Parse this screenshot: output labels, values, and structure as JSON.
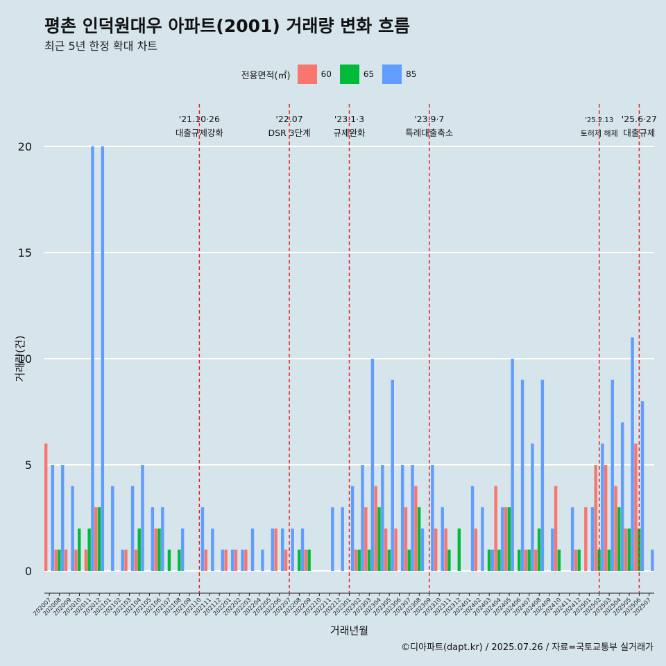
{
  "title": "평촌 인덕원대우 아파트(2001) 거래량 변화 흐름",
  "subtitle": "최근 5년 한정 확대 차트",
  "caption": "©디아파트(dapt.kr) / 2025.07.26 / 자료=국토교통부 실거래가",
  "legend": {
    "title": "전용면적(㎡)",
    "items": [
      {
        "label": "60",
        "color": "#f8766d"
      },
      {
        "label": "65",
        "color": "#00ba38"
      },
      {
        "label": "85",
        "color": "#619cff"
      }
    ]
  },
  "chart_data": {
    "type": "bar",
    "xlabel": "거래년월",
    "ylabel": "거래량(건)",
    "ylim": [
      0,
      20
    ],
    "yticks": [
      0,
      5,
      10,
      15,
      20
    ],
    "grid": true,
    "legend_position": "top",
    "categories": [
      "202007",
      "202008",
      "202009",
      "202010",
      "202011",
      "202012",
      "202101",
      "202102",
      "202103",
      "202104",
      "202105",
      "202106",
      "202107",
      "202108",
      "202109",
      "202110",
      "202111",
      "202112",
      "202201",
      "202202",
      "202203",
      "202204",
      "202205",
      "202206",
      "202207",
      "202208",
      "202209",
      "202210",
      "202211",
      "202212",
      "202301",
      "202302",
      "202303",
      "202304",
      "202305",
      "202306",
      "202307",
      "202308",
      "202309",
      "202310",
      "202311",
      "202312",
      "202401",
      "202402",
      "202403",
      "202404",
      "202405",
      "202406",
      "202407",
      "202408",
      "202409",
      "202410",
      "202411",
      "202412",
      "202501",
      "202502",
      "202503",
      "202504",
      "202505",
      "202506",
      "202507"
    ],
    "series": [
      {
        "name": "60",
        "color": "#f8766d",
        "values": [
          6,
          1,
          1,
          1,
          1,
          3,
          0,
          0,
          1,
          1,
          0,
          2,
          0,
          0,
          0,
          0,
          1,
          0,
          1,
          1,
          1,
          0,
          0,
          2,
          1,
          0,
          1,
          0,
          0,
          0,
          0,
          1,
          3,
          4,
          2,
          2,
          3,
          4,
          0,
          2,
          2,
          0,
          0,
          2,
          0,
          4,
          3,
          0,
          1,
          1,
          0,
          4,
          0,
          1,
          3,
          5,
          5,
          4,
          2,
          6,
          0
        ]
      },
      {
        "name": "65",
        "color": "#00ba38",
        "values": [
          0,
          1,
          0,
          2,
          2,
          3,
          0,
          0,
          0,
          2,
          0,
          2,
          1,
          1,
          0,
          0,
          0,
          0,
          0,
          0,
          0,
          0,
          0,
          0,
          0,
          1,
          1,
          0,
          0,
          0,
          0,
          1,
          1,
          3,
          1,
          0,
          1,
          3,
          0,
          0,
          1,
          2,
          0,
          0,
          1,
          1,
          3,
          1,
          1,
          2,
          0,
          1,
          0,
          1,
          0,
          1,
          1,
          3,
          2,
          2,
          0
        ]
      },
      {
        "name": "85",
        "color": "#619cff",
        "values": [
          5,
          5,
          4,
          0,
          20,
          20,
          4,
          1,
          4,
          5,
          3,
          3,
          0,
          2,
          0,
          3,
          2,
          1,
          1,
          1,
          2,
          1,
          2,
          2,
          2,
          2,
          0,
          0,
          3,
          3,
          4,
          5,
          10,
          5,
          9,
          5,
          5,
          2,
          5,
          3,
          0,
          0,
          4,
          3,
          1,
          3,
          10,
          9,
          6,
          9,
          2,
          0,
          3,
          0,
          3,
          6,
          9,
          7,
          11,
          8,
          1
        ]
      }
    ],
    "annotations": [
      {
        "category": "202110",
        "label1": "'21.10·26",
        "label2": "대출규제강화"
      },
      {
        "category": "202207",
        "label1": "'22.07",
        "label2": "DSR 3단계"
      },
      {
        "category": "202301",
        "label1": "'23.1·3",
        "label2": "규제완화"
      },
      {
        "category": "202309",
        "label1": "'23.9·7",
        "label2": "특례대출축소"
      },
      {
        "category": "202502",
        "label1": "'25.2.13",
        "label2": "토허제 해제"
      },
      {
        "category": "202506",
        "label1": "'25.6·27",
        "label2": "대출규제"
      }
    ]
  }
}
